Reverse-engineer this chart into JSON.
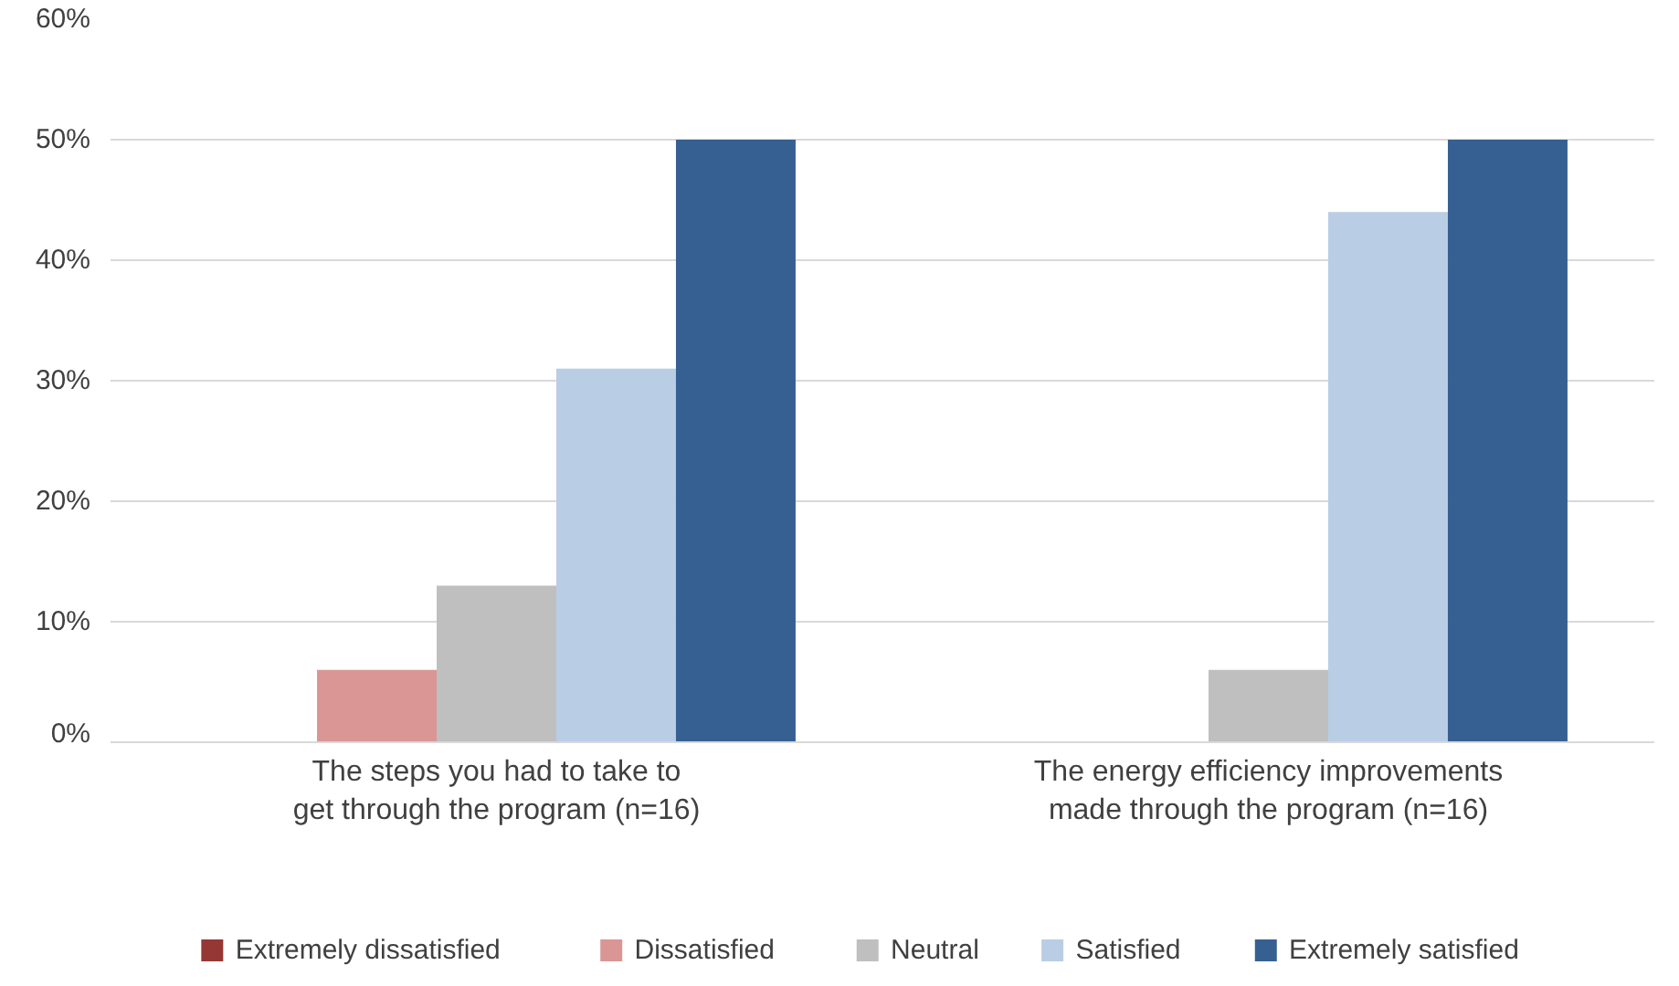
{
  "chart_data": {
    "type": "bar",
    "categories": [
      "The steps you had to take to get through the program (n=16)",
      "The energy efficiency improvements made through the program (n=16)"
    ],
    "series": [
      {
        "name": "Extremely dissatisfied",
        "color": "#953735",
        "values": [
          0,
          0
        ]
      },
      {
        "name": "Dissatisfied",
        "color": "#d99694",
        "values": [
          6,
          0
        ]
      },
      {
        "name": "Neutral",
        "color": "#bfbfbf",
        "values": [
          13,
          6
        ]
      },
      {
        "name": "Satisfied",
        "color": "#b9cde5",
        "values": [
          31,
          44
        ]
      },
      {
        "name": "Extremely satisfied",
        "color": "#376092",
        "values": [
          50,
          50
        ]
      }
    ],
    "ylim": [
      0,
      60
    ],
    "yticks": [
      {
        "value": 0,
        "label": "0%"
      },
      {
        "value": 10,
        "label": "10%"
      },
      {
        "value": 20,
        "label": "20%"
      },
      {
        "value": 30,
        "label": "30%"
      },
      {
        "value": 40,
        "label": "40%"
      },
      {
        "value": 50,
        "label": "50%"
      },
      {
        "value": 60,
        "label": "60%"
      }
    ],
    "grid": "y",
    "legend": "bottom"
  }
}
